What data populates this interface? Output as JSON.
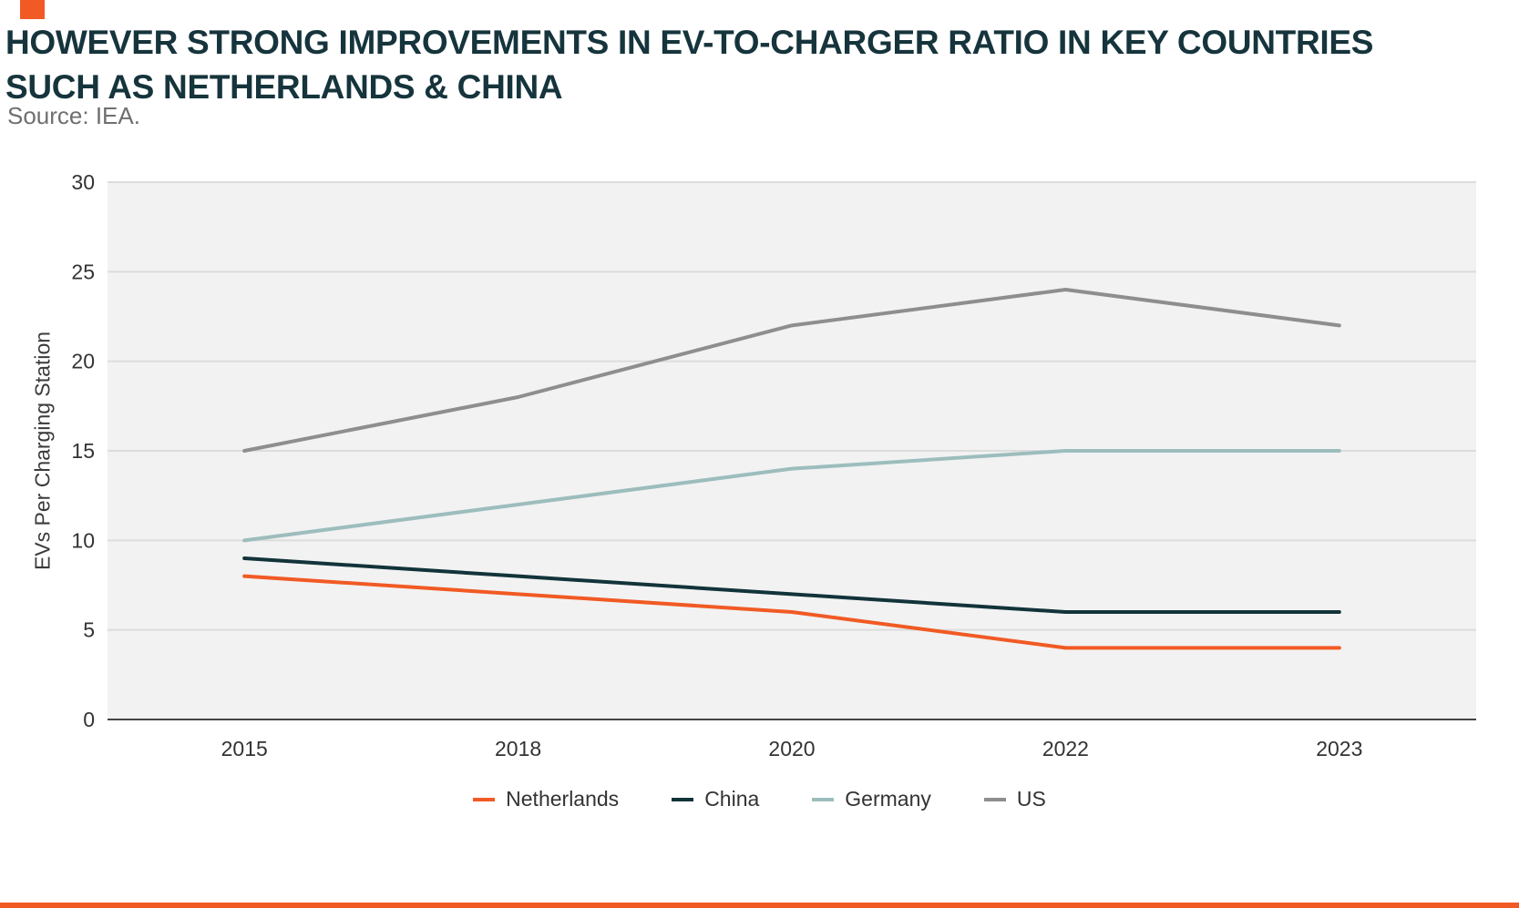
{
  "page": {
    "accent_color": "#F15A24"
  },
  "header": {
    "title_line1": "HOWEVER STRONG IMPROVEMENTS IN EV-TO-CHARGER RATIO IN KEY COUNTRIES",
    "title_line2": "SUCH AS NETHERLANDS & CHINA",
    "title_color": "#16343C",
    "source": "Source: IEA."
  },
  "chart_data": {
    "type": "line",
    "title": "HOWEVER STRONG IMPROVEMENTS IN EV-TO-CHARGER RATIO IN KEY COUNTRIES SUCH AS NETHERLANDS & CHINA",
    "categories": [
      "2015",
      "2018",
      "2020",
      "2022",
      "2023"
    ],
    "series": [
      {
        "name": "Netherlands",
        "color": "#F15A24",
        "values": [
          8,
          7,
          6,
          4,
          4
        ]
      },
      {
        "name": "China",
        "color": "#12333A",
        "values": [
          9,
          8,
          7,
          6,
          6
        ]
      },
      {
        "name": "Germany",
        "color": "#9DBDBD",
        "values": [
          10,
          12,
          14,
          15,
          15
        ]
      },
      {
        "name": "US",
        "color": "#8E8E8E",
        "values": [
          15,
          18,
          22,
          24,
          22
        ]
      }
    ],
    "xlabel": "",
    "ylabel": "EVs Per Charging Station",
    "ylim": [
      0,
      30
    ],
    "ytick_step": 5,
    "grid": true,
    "plot_bg": "#F2F2F2",
    "grid_color": "#DCDCDC",
    "axis_line_color": "#454545",
    "legend_position": "bottom"
  }
}
